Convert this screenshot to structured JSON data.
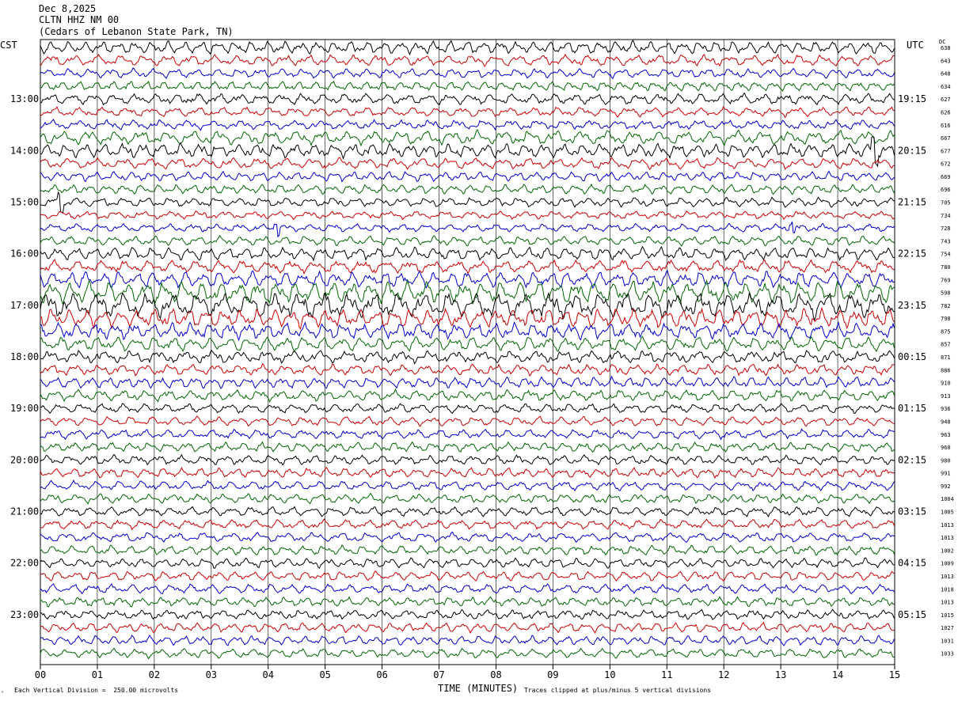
{
  "header": {
    "date": "Dec 8,2025",
    "station": "CLTN HHZ NM 00",
    "location": "(Cedars of Lebanon State Park, TN)"
  },
  "left_axis_title": "CST",
  "right_axis_title": "UTC",
  "dc_title": "DC",
  "footer": {
    "left": "Each Vertical Division =  250.00 microvolts",
    "right": "Traces clipped at plus/minus 5 vertical divisions",
    "icon": "ᵛ"
  },
  "colors": {
    "trace_cycle": [
      "#000000",
      "#cc0000",
      "#0000cc",
      "#006600"
    ],
    "grid": "#000000"
  },
  "chart_data": {
    "type": "line",
    "title": "Dec 8,2025 CLTN HHZ NM 00 (Cedars of Lebanon State Park, TN)",
    "xlabel": "TIME (MINUTES)",
    "xlim": [
      0,
      15
    ],
    "x_ticks": [
      "00",
      "01",
      "02",
      "03",
      "04",
      "05",
      "06",
      "07",
      "08",
      "09",
      "10",
      "11",
      "12",
      "13",
      "14",
      "15"
    ],
    "left_labels": [
      "13:00",
      "14:00",
      "15:00",
      "16:00",
      "17:00",
      "18:00",
      "19:00",
      "20:00",
      "21:00",
      "22:00",
      "23:00"
    ],
    "right_labels": [
      "19:15",
      "20:15",
      "21:15",
      "22:15",
      "23:15",
      "00:15",
      "01:15",
      "02:15",
      "03:15",
      "04:15",
      "05:15"
    ],
    "dc_values": [
      "638",
      "643",
      "648",
      "634",
      "627",
      "626",
      "616",
      "667",
      "677",
      "672",
      "669",
      "696",
      "705",
      "734",
      "728",
      "743",
      "754",
      "780",
      "769",
      "598",
      "782",
      "798",
      "875",
      "857",
      "871",
      "886",
      "910",
      "913",
      "936",
      "948",
      "963",
      "960",
      "980",
      "991",
      "992",
      "1004",
      "1005",
      "1013",
      "1013",
      "1002",
      "1009",
      "1013",
      "1018",
      "1013",
      "1015",
      "1027",
      "1031",
      "1033"
    ],
    "trace_amplitude": [
      8,
      7,
      6,
      6,
      7,
      6,
      6,
      9,
      9,
      7,
      6,
      6,
      6,
      5,
      5,
      6,
      8,
      8,
      10,
      14,
      16,
      12,
      10,
      9,
      8,
      7,
      7,
      7,
      6,
      6,
      6,
      6,
      6,
      6,
      6,
      6,
      6,
      6,
      6,
      6,
      6,
      6,
      6,
      6,
      6,
      6,
      6,
      6
    ],
    "events": [
      {
        "row": 12,
        "minute": 0.35
      },
      {
        "row": 14,
        "minute": 4.15
      },
      {
        "row": 14,
        "minute": 13.2
      },
      {
        "row": 8,
        "minute": 14.65
      }
    ]
  }
}
